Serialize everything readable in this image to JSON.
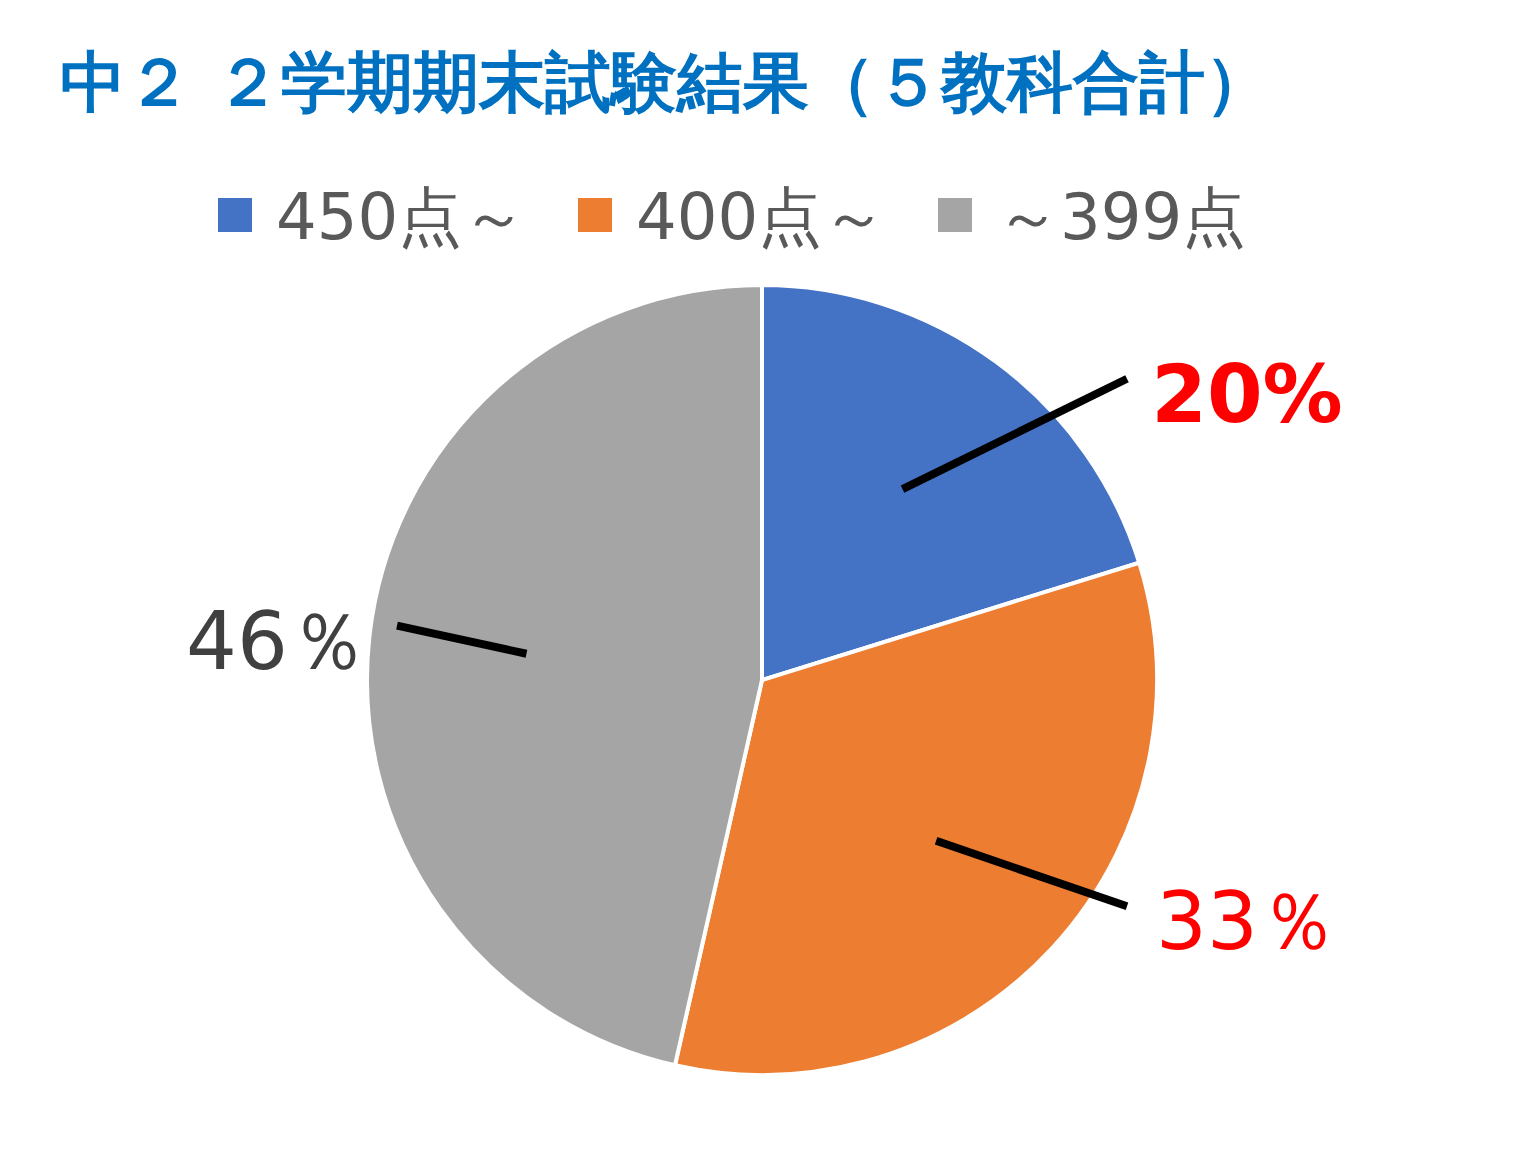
{
  "chart_data": {
    "type": "pie",
    "title": "中２ ２学期期末試験結果（５教科合計）",
    "categories": [
      "450点～",
      "400点～",
      "～399点"
    ],
    "values": [
      20,
      33,
      46
    ],
    "colors": [
      "#4472c4",
      "#ed7d31",
      "#a5a5a5"
    ],
    "value_labels": [
      "20%",
      "33％",
      "46％"
    ],
    "legend": "top"
  }
}
